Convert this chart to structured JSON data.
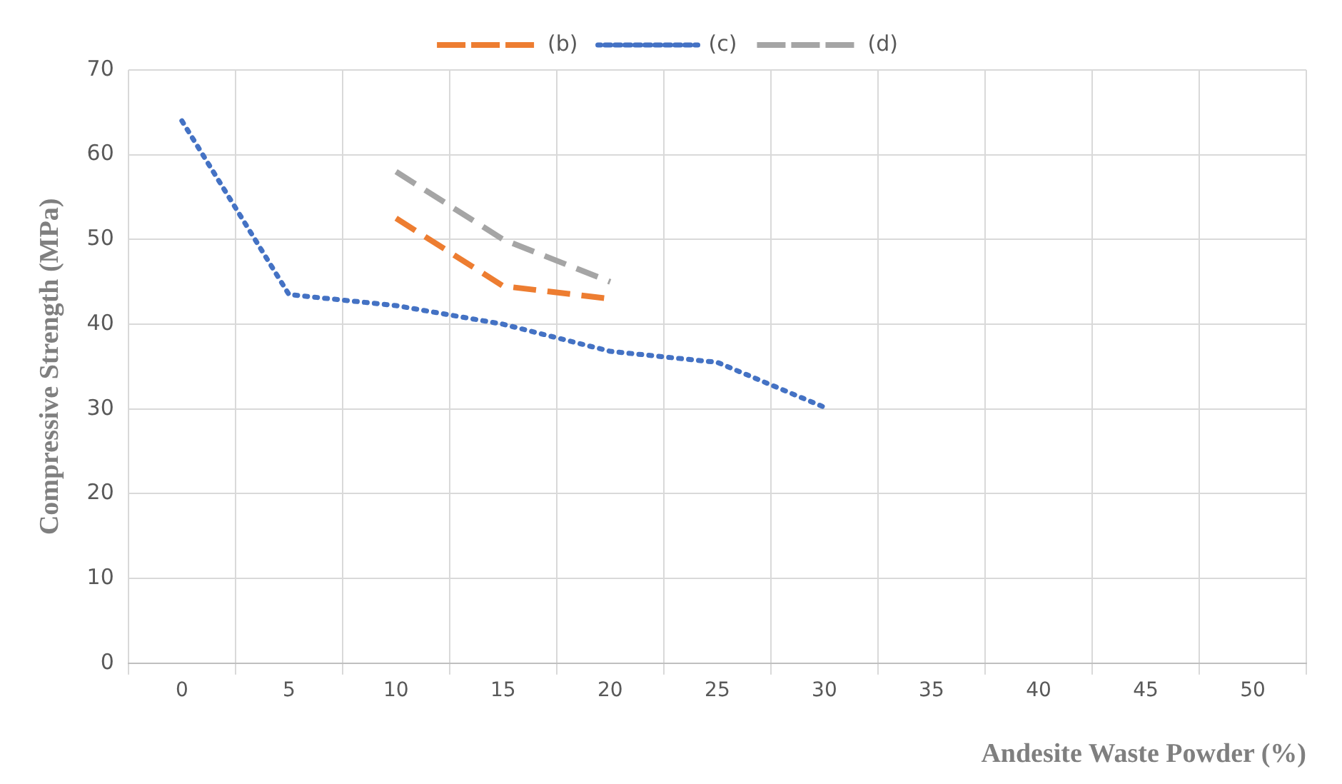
{
  "chart_data": {
    "type": "line",
    "xlabel": "Andesite Waste Powder (%)",
    "ylabel": "Compressive Strength (MPa)",
    "categories": [
      "0",
      "5",
      "10",
      "15",
      "20",
      "25",
      "30",
      "35",
      "40",
      "45",
      "50"
    ],
    "series": [
      {
        "name": "(b)",
        "color": "#ed7d31",
        "line_style": "dashed",
        "values": [
          null,
          null,
          52.5,
          44.5,
          43,
          null,
          null,
          null,
          null,
          null,
          null
        ]
      },
      {
        "name": "(c)",
        "color": "#4472c4",
        "line_style": "dotted",
        "values": [
          64,
          43.5,
          42.2,
          40,
          36.8,
          35.5,
          30.2,
          null,
          null,
          null,
          null
        ]
      },
      {
        "name": "(d)",
        "color": "#a5a5a5",
        "line_style": "dashed",
        "values": [
          null,
          null,
          58,
          50,
          45,
          null,
          null,
          null,
          null,
          null,
          null
        ]
      }
    ],
    "ylim": [
      0,
      70
    ],
    "yticks": [
      0,
      10,
      20,
      30,
      40,
      50,
      60,
      70
    ],
    "grid": true,
    "legend": "top",
    "marker": "none"
  }
}
